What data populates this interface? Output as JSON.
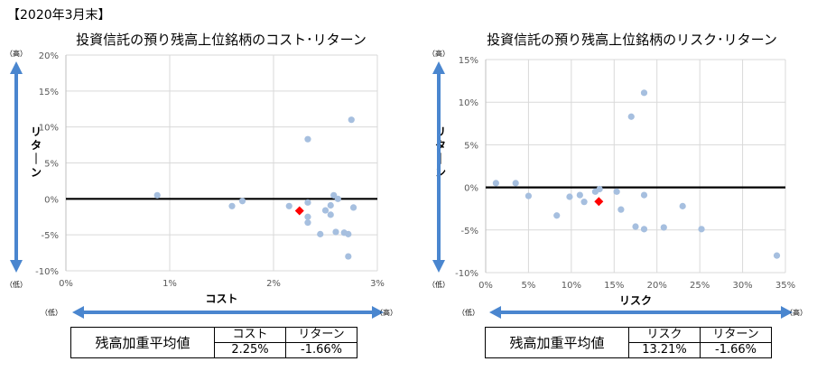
{
  "header": "【2020年3月末】",
  "chart_data": [
    {
      "type": "scatter",
      "title": "投資信託の預り残高上位銘柄のコスト･リターン",
      "xlabel": "コスト",
      "ylabel": "リターン",
      "xlim": [
        0,
        3
      ],
      "ylim": [
        -10,
        20
      ],
      "x_ticks": [
        "0%",
        "1%",
        "2%",
        "3%"
      ],
      "y_ticks": [
        "-10%",
        "-5%",
        "0%",
        "5%",
        "10%",
        "15%",
        "20%"
      ],
      "grid": true,
      "high_label": "（高）",
      "low_label": "（低）",
      "series": [
        {
          "points": [
            [
              0.88,
              0.5
            ],
            [
              1.6,
              -1.0
            ],
            [
              1.7,
              -0.3
            ],
            [
              2.15,
              -1.0
            ],
            [
              2.33,
              8.3
            ],
            [
              2.33,
              -0.5
            ],
            [
              2.33,
              -2.5
            ],
            [
              2.33,
              -3.3
            ],
            [
              2.45,
              -4.9
            ],
            [
              2.5,
              -1.6
            ],
            [
              2.55,
              -0.9
            ],
            [
              2.55,
              -2.2
            ],
            [
              2.58,
              0.5
            ],
            [
              2.6,
              -4.6
            ],
            [
              2.62,
              0.0
            ],
            [
              2.68,
              -4.7
            ],
            [
              2.72,
              -4.9
            ],
            [
              2.72,
              -8.0
            ],
            [
              2.75,
              11.0
            ],
            [
              2.77,
              -1.2
            ]
          ],
          "color": "#a6bfdf"
        },
        {
          "name": "残高加重平均値",
          "points": [
            [
              2.25,
              -1.66
            ]
          ],
          "color": "#ff0000"
        }
      ]
    },
    {
      "type": "scatter",
      "title": "投資信託の預り残高上位銘柄のリスク･リターン",
      "xlabel": "リスク",
      "ylabel": "リターン",
      "xlim": [
        0,
        35
      ],
      "ylim": [
        -10,
        15
      ],
      "x_ticks": [
        "0%",
        "5%",
        "10%",
        "15%",
        "20%",
        "25%",
        "30%",
        "35%"
      ],
      "y_ticks": [
        "-10%",
        "-5%",
        "0%",
        "5%",
        "10%",
        "15%"
      ],
      "grid": true,
      "high_label": "（高）",
      "low_label": "（低）",
      "series": [
        {
          "points": [
            [
              1.2,
              0.5
            ],
            [
              3.5,
              0.5
            ],
            [
              5.0,
              -1.0
            ],
            [
              8.3,
              -3.3
            ],
            [
              9.8,
              -1.1
            ],
            [
              11.0,
              -0.9
            ],
            [
              11.5,
              -1.7
            ],
            [
              12.8,
              -0.5
            ],
            [
              13.3,
              -0.2
            ],
            [
              15.3,
              -0.5
            ],
            [
              15.8,
              -2.6
            ],
            [
              17.0,
              8.3
            ],
            [
              17.5,
              -4.6
            ],
            [
              18.5,
              -0.9
            ],
            [
              18.5,
              -4.9
            ],
            [
              18.5,
              11.1
            ],
            [
              20.8,
              -4.7
            ],
            [
              23.0,
              -2.2
            ],
            [
              25.2,
              -4.9
            ],
            [
              34.0,
              -8.0
            ]
          ],
          "color": "#a6bfdf"
        },
        {
          "name": "残高加重平均値",
          "points": [
            [
              13.21,
              -1.66
            ]
          ],
          "color": "#ff0000"
        }
      ]
    }
  ],
  "tables": [
    {
      "label": "残高加重平均値",
      "col1_header": "コスト",
      "col1_value": "2.25%",
      "col2_header": "リターン",
      "col2_value": "-1.66%"
    },
    {
      "label": "残高加重平均値",
      "col1_header": "リスク",
      "col1_value": "13.21%",
      "col2_header": "リターン",
      "col2_value": "-1.66%"
    }
  ]
}
